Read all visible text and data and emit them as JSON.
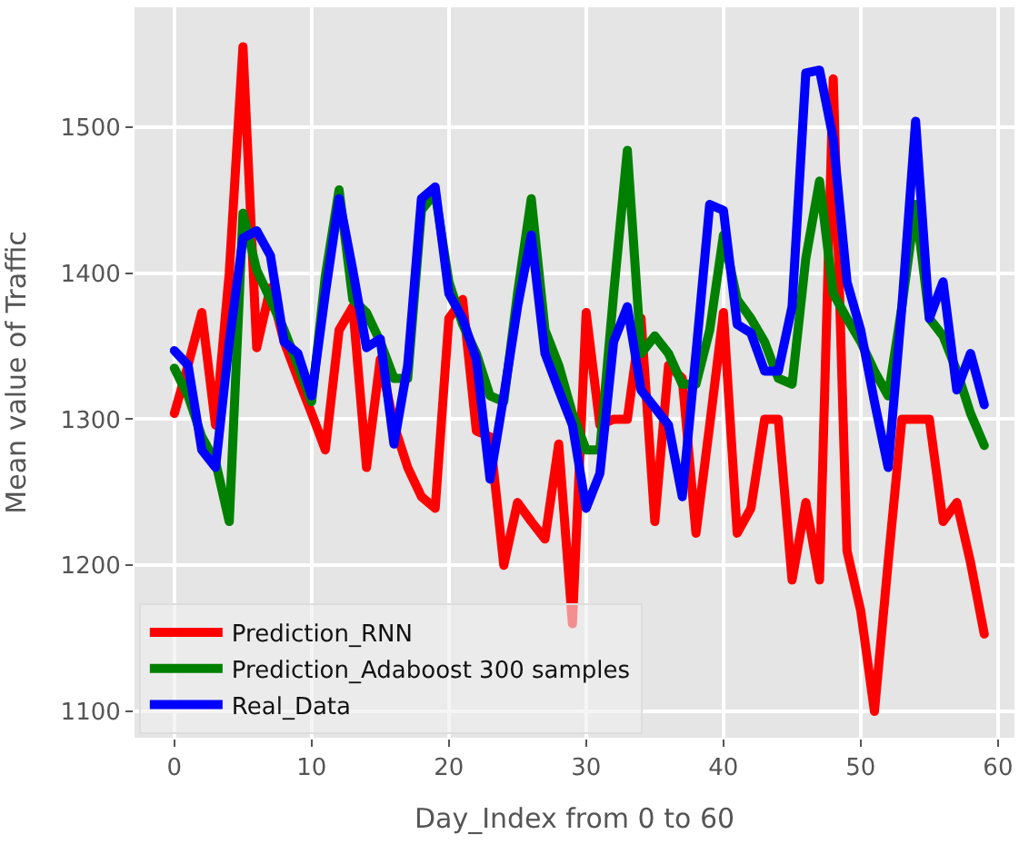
{
  "chart_data": {
    "type": "line",
    "xlabel": "Day_Index from 0 to 60",
    "ylabel": "Mean value of Traffic",
    "x": [
      0,
      1,
      2,
      3,
      4,
      5,
      6,
      7,
      8,
      9,
      10,
      11,
      12,
      13,
      14,
      15,
      16,
      17,
      18,
      19,
      20,
      21,
      22,
      23,
      24,
      25,
      26,
      27,
      28,
      29,
      30,
      31,
      32,
      33,
      34,
      35,
      36,
      37,
      38,
      39,
      40,
      41,
      42,
      43,
      44,
      45,
      46,
      47,
      48,
      49,
      50,
      51,
      52,
      53,
      54,
      55,
      56,
      57,
      58,
      59
    ],
    "series": [
      {
        "name": "Prediction_RNN",
        "color": "#ff0000",
        "values": [
          1304,
          1337,
          1373,
          1296,
          1400,
          1555,
          1349,
          1390,
          1353,
          1328,
          1304,
          1279,
          1361,
          1377,
          1267,
          1341,
          1296,
          1267,
          1247,
          1239,
          1369,
          1382,
          1292,
          1288,
          1200,
          1243,
          1230,
          1218,
          1283,
          1160,
          1373,
          1296,
          1300,
          1300,
          1369,
          1230,
          1337,
          1328,
          1222,
          1296,
          1373,
          1222,
          1239,
          1300,
          1300,
          1190,
          1243,
          1190,
          1533,
          1210,
          1169,
          1100,
          1202,
          1300,
          1300,
          1300,
          1230,
          1243,
          1202,
          1153
        ]
      },
      {
        "name": "Prediction_Adaboost 300 samples",
        "color": "#008000",
        "values": [
          1335,
          1316,
          1288,
          1271,
          1230,
          1441,
          1402,
          1382,
          1361,
          1337,
          1312,
          1398,
          1457,
          1382,
          1373,
          1353,
          1328,
          1328,
          1443,
          1455,
          1394,
          1365,
          1345,
          1316,
          1312,
          1386,
          1451,
          1361,
          1337,
          1304,
          1279,
          1279,
          1386,
          1484,
          1345,
          1357,
          1345,
          1324,
          1324,
          1361,
          1426,
          1382,
          1369,
          1353,
          1328,
          1324,
          1410,
          1463,
          1386,
          1369,
          1353,
          1333,
          1316,
          1377,
          1447,
          1369,
          1357,
          1333,
          1304,
          1282
        ]
      },
      {
        "name": "Real_Data",
        "color": "#0000ff",
        "values": [
          1347,
          1337,
          1279,
          1267,
          1353,
          1424,
          1429,
          1412,
          1353,
          1345,
          1316,
          1386,
          1451,
          1402,
          1349,
          1355,
          1283,
          1337,
          1451,
          1459,
          1386,
          1369,
          1341,
          1259,
          1316,
          1377,
          1426,
          1345,
          1320,
          1296,
          1239,
          1263,
          1353,
          1377,
          1320,
          1308,
          1296,
          1247,
          1345,
          1447,
          1443,
          1365,
          1359,
          1333,
          1333,
          1377,
          1537,
          1539,
          1492,
          1394,
          1361,
          1312,
          1267,
          1377,
          1504,
          1369,
          1394,
          1320,
          1345,
          1310
        ]
      }
    ],
    "xlim": [
      -2.9,
      61.2
    ],
    "ylim": [
      1082,
      1582
    ],
    "xticks": [
      0,
      10,
      20,
      30,
      40,
      50,
      60
    ],
    "yticks": [
      1100,
      1200,
      1300,
      1400,
      1500
    ],
    "grid": true,
    "legend": "bottom left",
    "line_style": "solid",
    "marker": "none"
  }
}
